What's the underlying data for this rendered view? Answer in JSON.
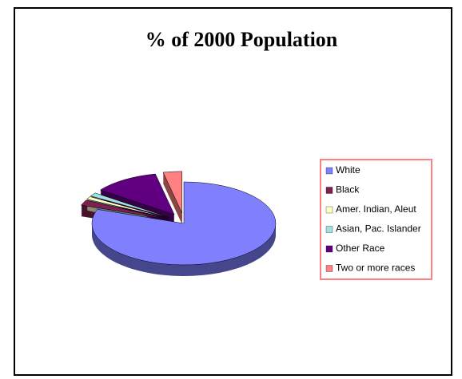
{
  "chart_data": {
    "type": "pie",
    "title": "% of  2000 Population",
    "categories": [
      "White",
      "Black",
      "Amer. Indian, Aleut",
      "Asian, Pac. Islander",
      "Other Race",
      "Two or more races"
    ],
    "values": [
      80.5,
      2.1,
      1.1,
      1.4,
      11.6,
      3.3
    ],
    "colors": [
      "#8080ff",
      "#7f2050",
      "#ffffc0",
      "#a0e0e0",
      "#600080",
      "#ff8080"
    ],
    "legend": "right"
  }
}
